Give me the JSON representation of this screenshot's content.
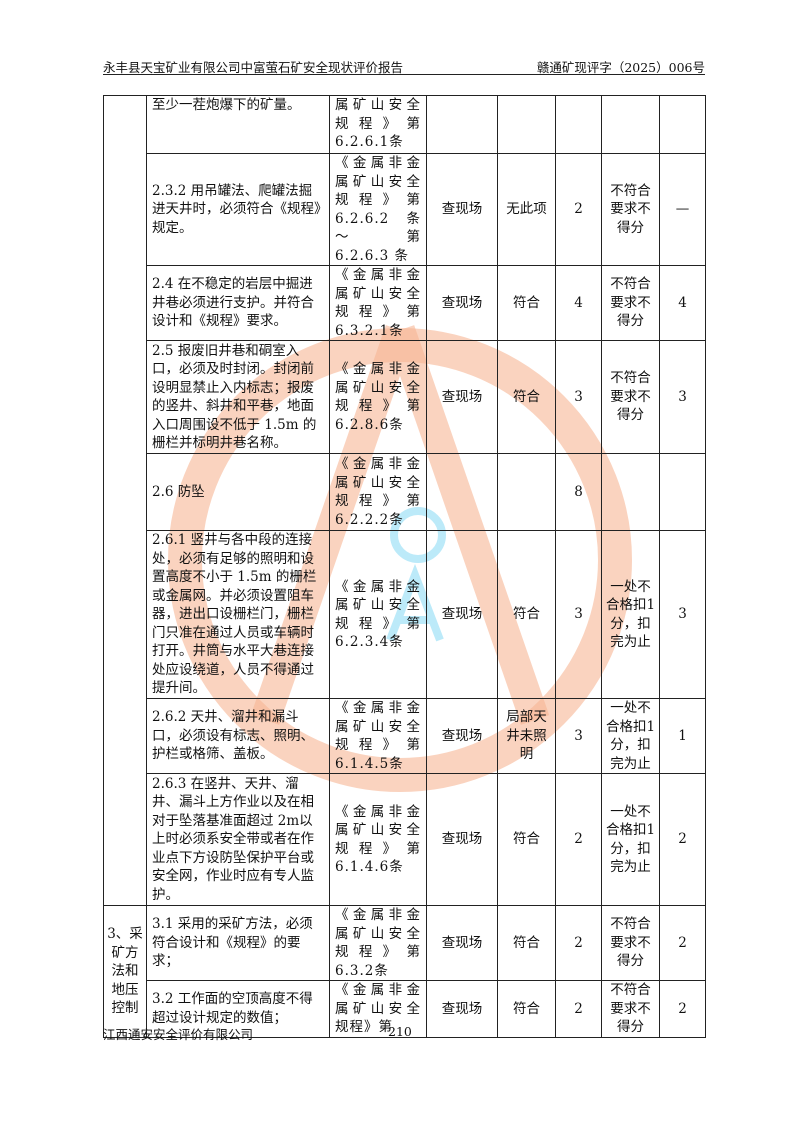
{
  "header": {
    "title": "永丰县天宝矿业有限公司中富萤石矿安全现状评价报告",
    "doc_number": "赣通矿现评字（2025）006号"
  },
  "rows": [
    {
      "item": "至少一茬炮爆下的矿量。",
      "basis": "属矿山安全规程》第6.2.6.1条",
      "method": "",
      "result": "",
      "score": "",
      "rule": "",
      "got": ""
    },
    {
      "item": "2.3.2 用吊罐法、爬罐法掘进天井时，必须符合《规程》规定。",
      "basis": "《金属非金属矿山安全规程》第6.2.6.2 条～第 6.2.6.3 条",
      "method": "查现场",
      "result": "无此项",
      "score": "2",
      "rule": "不符合要求不得分",
      "got": "—"
    },
    {
      "item": "2.4 在不稳定的岩层中掘进井巷必须进行支护。并符合设计和《规程》要求。",
      "basis": "《金属非金属矿山安全规程》第6.3.2.1条",
      "method": "查现场",
      "result": "符合",
      "score": "4",
      "rule": "不符合要求不得分",
      "got": "4"
    },
    {
      "item": "2.5 报废旧井巷和硐室入口，必须及时封闭。封闭前设明显禁止入内标志；报废的竖井、斜井和平巷，地面入口周围设不低于 1.5m 的栅栏并标明井巷名称。",
      "basis": "《金属非金属矿山安全规程》第6.2.8.6条",
      "method": "查现场",
      "result": "符合",
      "score": "3",
      "rule": "不符合要求不得分",
      "got": "3"
    },
    {
      "item": "2.6 防坠",
      "basis": "《金属非金属矿山安全规程》第6.2.2.2条",
      "method": "",
      "result": "",
      "score": "8",
      "rule": "",
      "got": ""
    },
    {
      "item": "2.6.1 竖井与各中段的连接处，必须有足够的照明和设置高度不小于 1.5m 的栅栏或金属网。并必须设置阻车器，进出口设栅栏门，栅栏门只准在通过人员或车辆时打开。井筒与水平大巷连接处应设绕道，人员不得通过提升间。",
      "basis": "《金属非金属矿山安全规程》第6.2.3.4条",
      "method": "查现场",
      "result": "符合",
      "score": "3",
      "rule": "一处不合格扣1 分，扣完为止",
      "got": "3"
    },
    {
      "item": "2.6.2 天井、溜井和漏斗口，必须设有标志、照明、护栏或格筛、盖板。",
      "basis": "《金属非金属矿山安全规程》第6.1.4.5条",
      "method": "查现场",
      "result": "局部天井未照明",
      "score": "3",
      "rule": "一处不合格扣1分，扣完为止",
      "got": "1"
    },
    {
      "item": "2.6.3 在竖井、天井、溜井、漏斗上方作业以及在相对于坠落基准面超过 2m以上时必须系安全带或者在作业点下方设防坠保护平台或安全网，作业时应有专人监护。",
      "basis": "《金属非金属矿山安全规程》第6.1.4.6条",
      "method": "查现场",
      "result": "符合",
      "score": "2",
      "rule": "一处不合格扣1 分，扣完为止",
      "got": "2"
    },
    {
      "item": "3.1 采用的采矿方法，必须符合设计和《规程》的要求；",
      "basis": "《金属非金属矿山安全规程》第 6.3.2条",
      "method": "查现场",
      "result": "符合",
      "score": "2",
      "rule": "不符合要求不得分",
      "got": "2"
    },
    {
      "item": "3.2 工作面的空顶高度不得超过设计规定的数值；",
      "basis": "《金属非金属矿山安全规程》第",
      "method": "查现场",
      "result": "符合",
      "score": "2",
      "rule": "不符合要求不得分",
      "got": "2"
    }
  ],
  "section3": "3、采矿方法和地压控制",
  "footer": {
    "company": "江西通安安全评价有限公司",
    "page": "210"
  },
  "watermark": {
    "text": "江西通安安全评价有限公司",
    "stamp": "江西通安",
    "letters": "QA",
    "colors": {
      "circle": "#f2a07a",
      "stamp": "#f26b6b",
      "letters": "#7fd3f0",
      "text": "#c8c8c8"
    }
  }
}
